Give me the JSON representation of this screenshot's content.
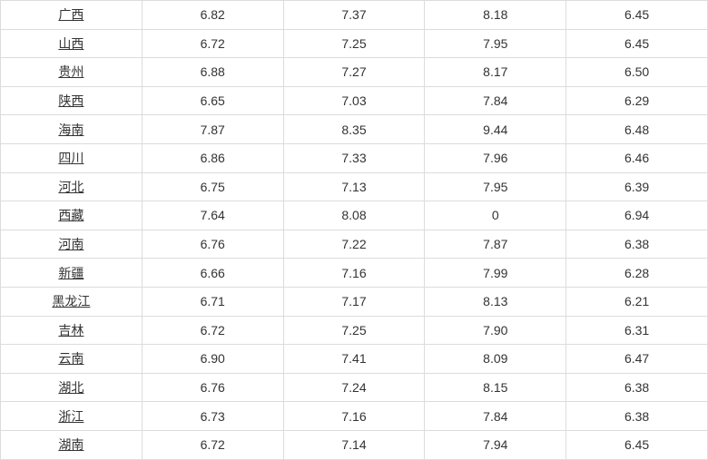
{
  "table": {
    "border_color": "#dcdcdc",
    "text_color": "#333333",
    "background_color": "#ffffff",
    "font_size": 14,
    "col_count": 5,
    "rows": [
      {
        "province": "广西",
        "v1": "6.82",
        "v2": "7.37",
        "v3": "8.18",
        "v4": "6.45"
      },
      {
        "province": "山西",
        "v1": "6.72",
        "v2": "7.25",
        "v3": "7.95",
        "v4": "6.45"
      },
      {
        "province": "贵州",
        "v1": "6.88",
        "v2": "7.27",
        "v3": "8.17",
        "v4": "6.50"
      },
      {
        "province": "陕西",
        "v1": "6.65",
        "v2": "7.03",
        "v3": "7.84",
        "v4": "6.29"
      },
      {
        "province": "海南",
        "v1": "7.87",
        "v2": "8.35",
        "v3": "9.44",
        "v4": "6.48"
      },
      {
        "province": "四川",
        "v1": "6.86",
        "v2": "7.33",
        "v3": "7.96",
        "v4": "6.46"
      },
      {
        "province": "河北",
        "v1": "6.75",
        "v2": "7.13",
        "v3": "7.95",
        "v4": "6.39"
      },
      {
        "province": "西藏",
        "v1": "7.64",
        "v2": "8.08",
        "v3": "0",
        "v4": "6.94"
      },
      {
        "province": "河南",
        "v1": "6.76",
        "v2": "7.22",
        "v3": "7.87",
        "v4": "6.38"
      },
      {
        "province": "新疆",
        "v1": "6.66",
        "v2": "7.16",
        "v3": "7.99",
        "v4": "6.28"
      },
      {
        "province": "黑龙江",
        "v1": "6.71",
        "v2": "7.17",
        "v3": "8.13",
        "v4": "6.21"
      },
      {
        "province": "吉林",
        "v1": "6.72",
        "v2": "7.25",
        "v3": "7.90",
        "v4": "6.31"
      },
      {
        "province": "云南",
        "v1": "6.90",
        "v2": "7.41",
        "v3": "8.09",
        "v4": "6.47"
      },
      {
        "province": "湖北",
        "v1": "6.76",
        "v2": "7.24",
        "v3": "8.15",
        "v4": "6.38"
      },
      {
        "province": "浙江",
        "v1": "6.73",
        "v2": "7.16",
        "v3": "7.84",
        "v4": "6.38"
      },
      {
        "province": "湖南",
        "v1": "6.72",
        "v2": "7.14",
        "v3": "7.94",
        "v4": "6.45"
      }
    ]
  }
}
